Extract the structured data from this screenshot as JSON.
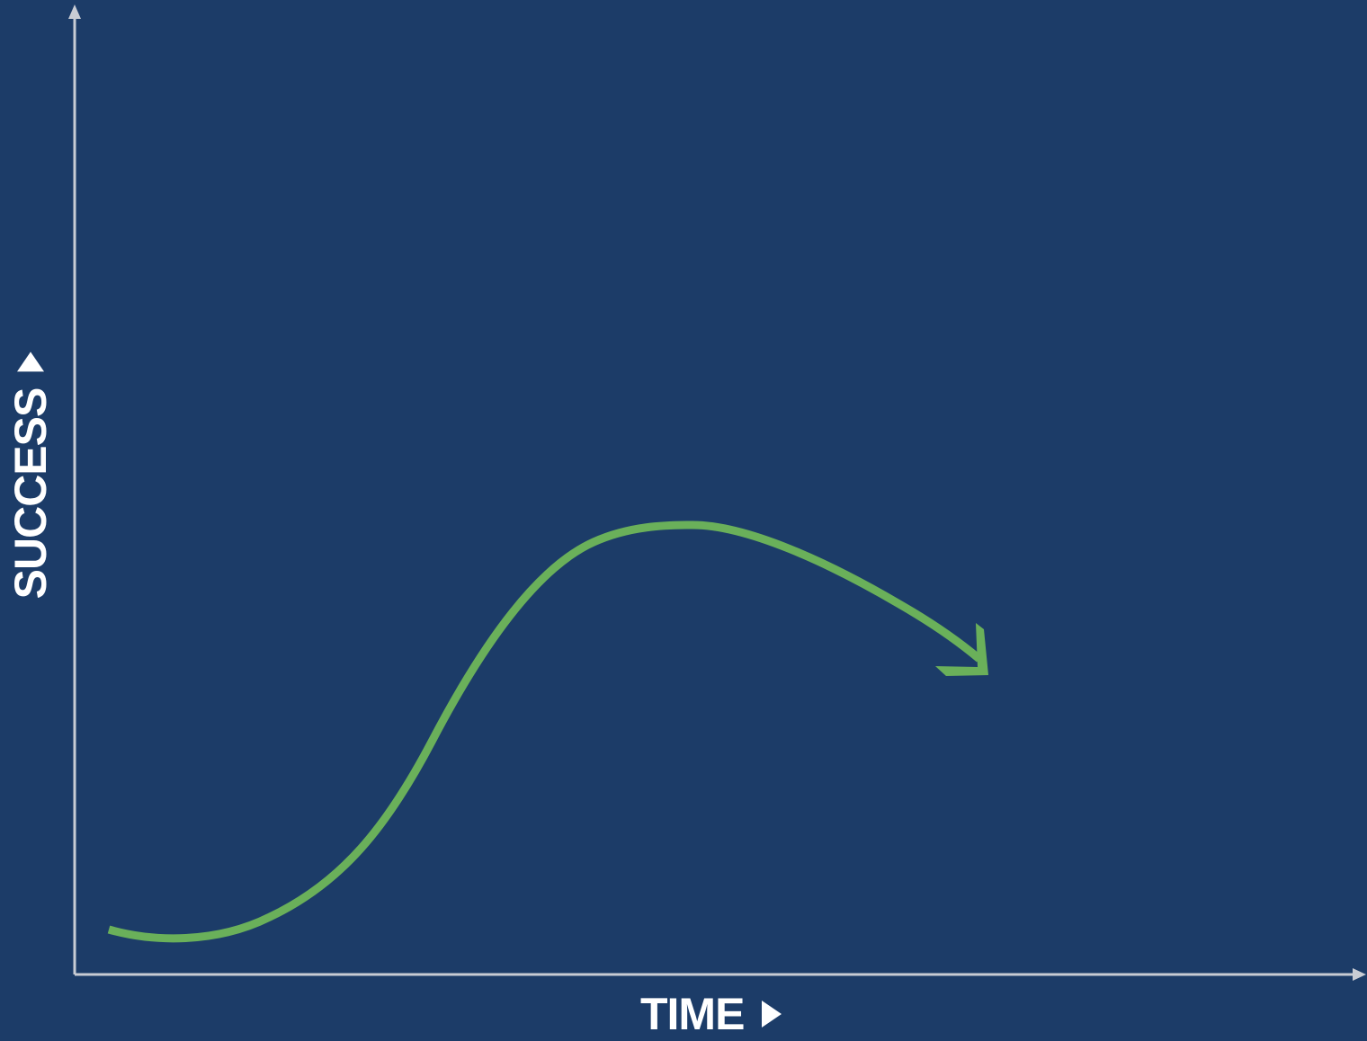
{
  "diagram": {
    "x_axis_label": "TIME",
    "y_axis_label": "SUCCESS",
    "colors": {
      "background": "#1c3c68",
      "axis": "#c8ccd4",
      "curve": "#6ab05a",
      "label": "#ffffff"
    },
    "icons": {
      "x_label_marker": "triangle-right-icon",
      "y_label_marker": "triangle-up-icon"
    }
  }
}
